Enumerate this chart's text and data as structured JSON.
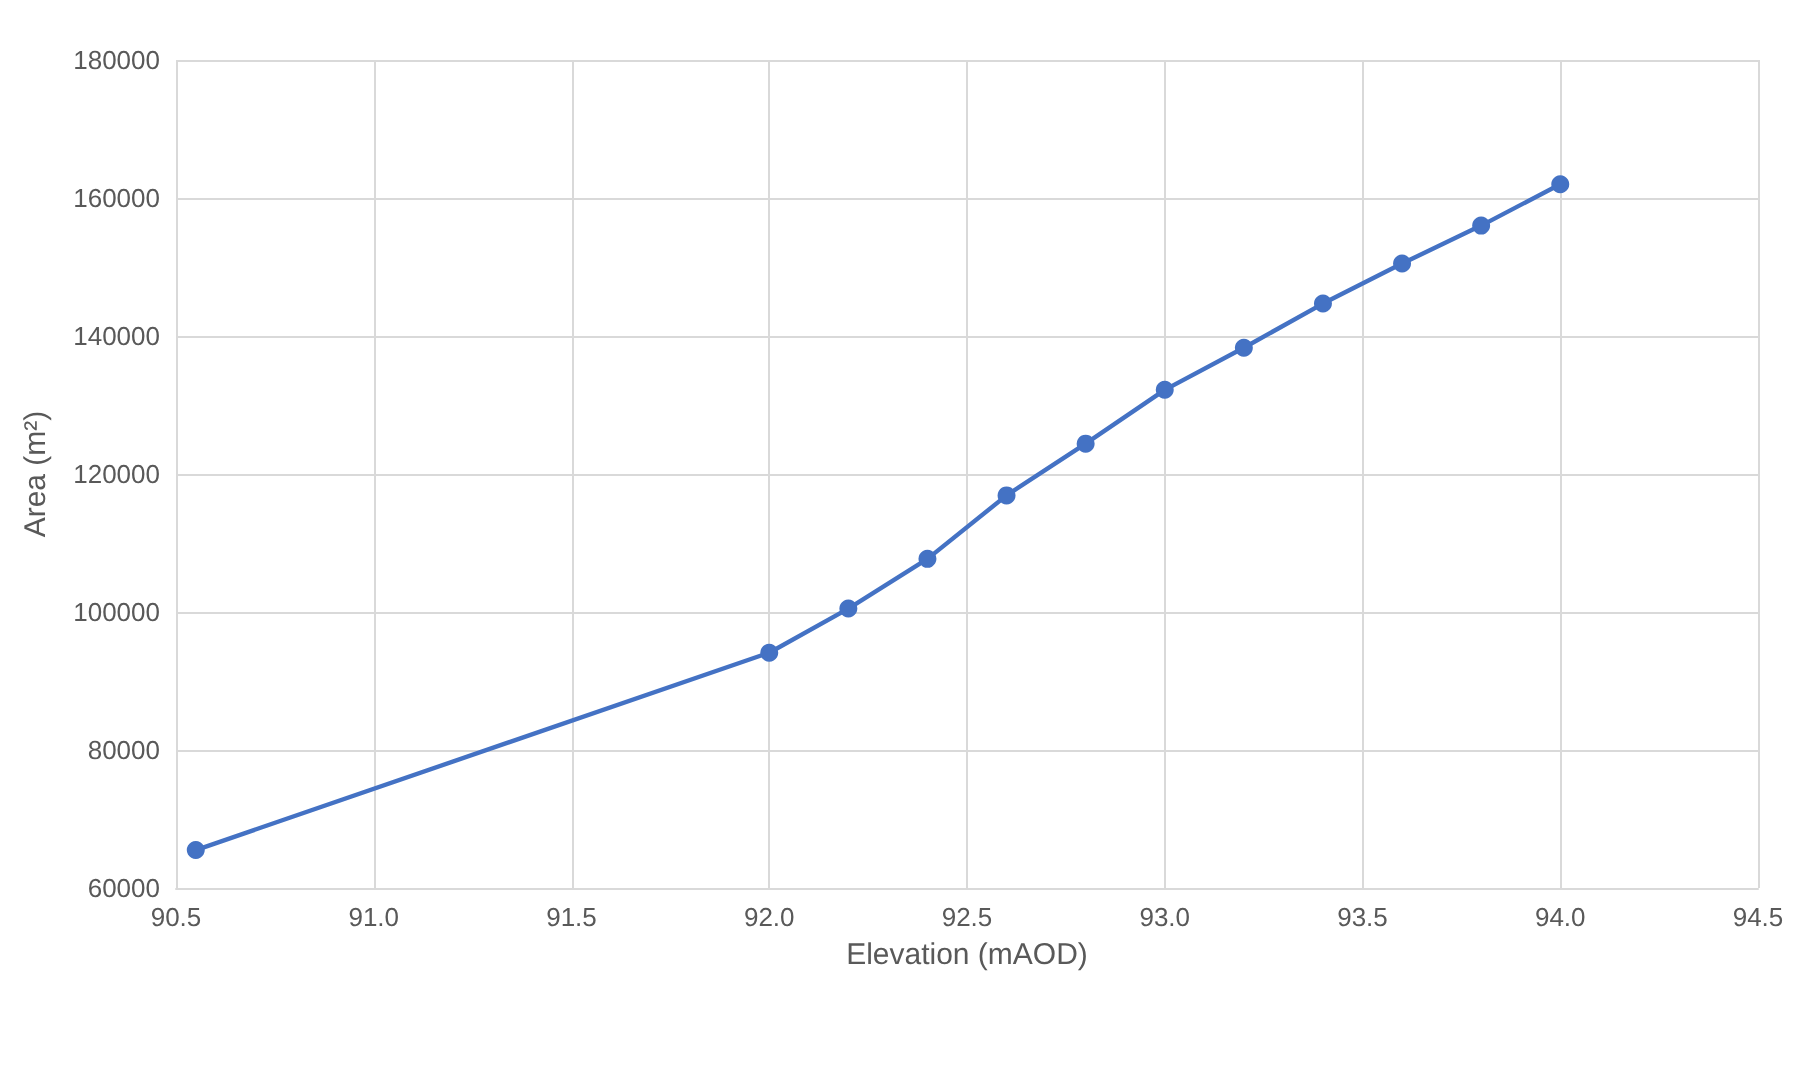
{
  "chart_data": {
    "type": "line",
    "xlabel": "Elevation (mAOD)",
    "ylabel": "Area (m²)",
    "x": [
      90.55,
      92.0,
      92.2,
      92.4,
      92.6,
      92.8,
      93.0,
      93.2,
      93.4,
      93.6,
      93.8,
      94.0
    ],
    "series": [
      {
        "color": "#4472c4",
        "values": [
          65500,
          94100,
          100500,
          107700,
          116900,
          124400,
          132200,
          138300,
          144700,
          150500,
          156000,
          162000
        ]
      }
    ],
    "xlim": [
      90.5,
      94.5
    ],
    "xticks": [
      90.5,
      {
        "value": 91,
        "label": "91.0"
      },
      91.5,
      {
        "value": 92,
        "label": "92.0"
      },
      92.5,
      {
        "value": 93,
        "label": "93.0"
      },
      93.5,
      {
        "value": 94,
        "label": "94.0"
      },
      94.5
    ],
    "ylim": [
      60000,
      180000
    ],
    "yticks": [
      60000,
      80000,
      100000,
      120000,
      140000,
      160000,
      180000
    ],
    "grid": true,
    "marker": "circle",
    "line_style": "solid"
  }
}
